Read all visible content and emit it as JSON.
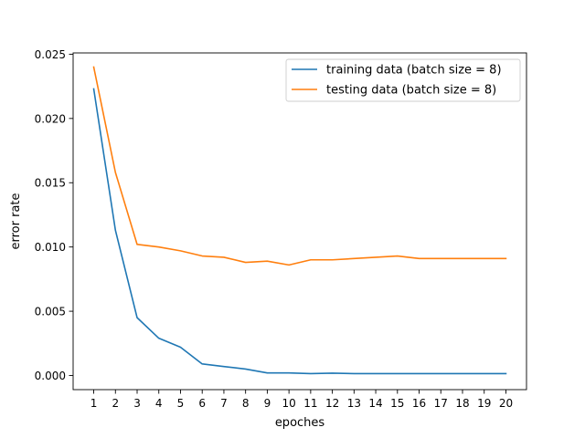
{
  "chart_data": {
    "type": "line",
    "title": "",
    "xlabel": "epoches",
    "ylabel": "error rate",
    "x": [
      1,
      2,
      3,
      4,
      5,
      6,
      7,
      8,
      9,
      10,
      11,
      12,
      13,
      14,
      15,
      16,
      17,
      18,
      19,
      20
    ],
    "xticks": [
      "1",
      "2",
      "3",
      "4",
      "5",
      "6",
      "7",
      "8",
      "9",
      "10",
      "11",
      "12",
      "13",
      "14",
      "15",
      "16",
      "17",
      "18",
      "19",
      "20"
    ],
    "xlim": [
      0.05,
      20.95
    ],
    "ylim": [
      -0.0011,
      0.0251
    ],
    "yticks": [
      0.0,
      0.005,
      0.01,
      0.015,
      0.02,
      0.025
    ],
    "ytick_labels": [
      "0.000",
      "0.005",
      "0.010",
      "0.015",
      "0.020",
      "0.025"
    ],
    "grid": false,
    "legend_position": "top-right",
    "series": [
      {
        "name": "training data (batch size = 8)",
        "color": "#1f77b4",
        "values": [
          0.0223,
          0.0113,
          0.0045,
          0.0029,
          0.0022,
          0.0009,
          0.0007,
          0.0005,
          0.0002,
          0.0002,
          0.00015,
          0.00018,
          0.00015,
          0.00015,
          0.00015,
          0.00015,
          0.00015,
          0.00015,
          0.00015,
          0.00015
        ]
      },
      {
        "name": "testing data (batch size = 8)",
        "color": "#ff7f0e",
        "values": [
          0.024,
          0.0158,
          0.0102,
          0.01,
          0.0097,
          0.0093,
          0.0092,
          0.0088,
          0.0089,
          0.0086,
          0.009,
          0.009,
          0.0091,
          0.0092,
          0.0093,
          0.0091,
          0.0091,
          0.0091,
          0.0091,
          0.0091
        ]
      }
    ]
  }
}
